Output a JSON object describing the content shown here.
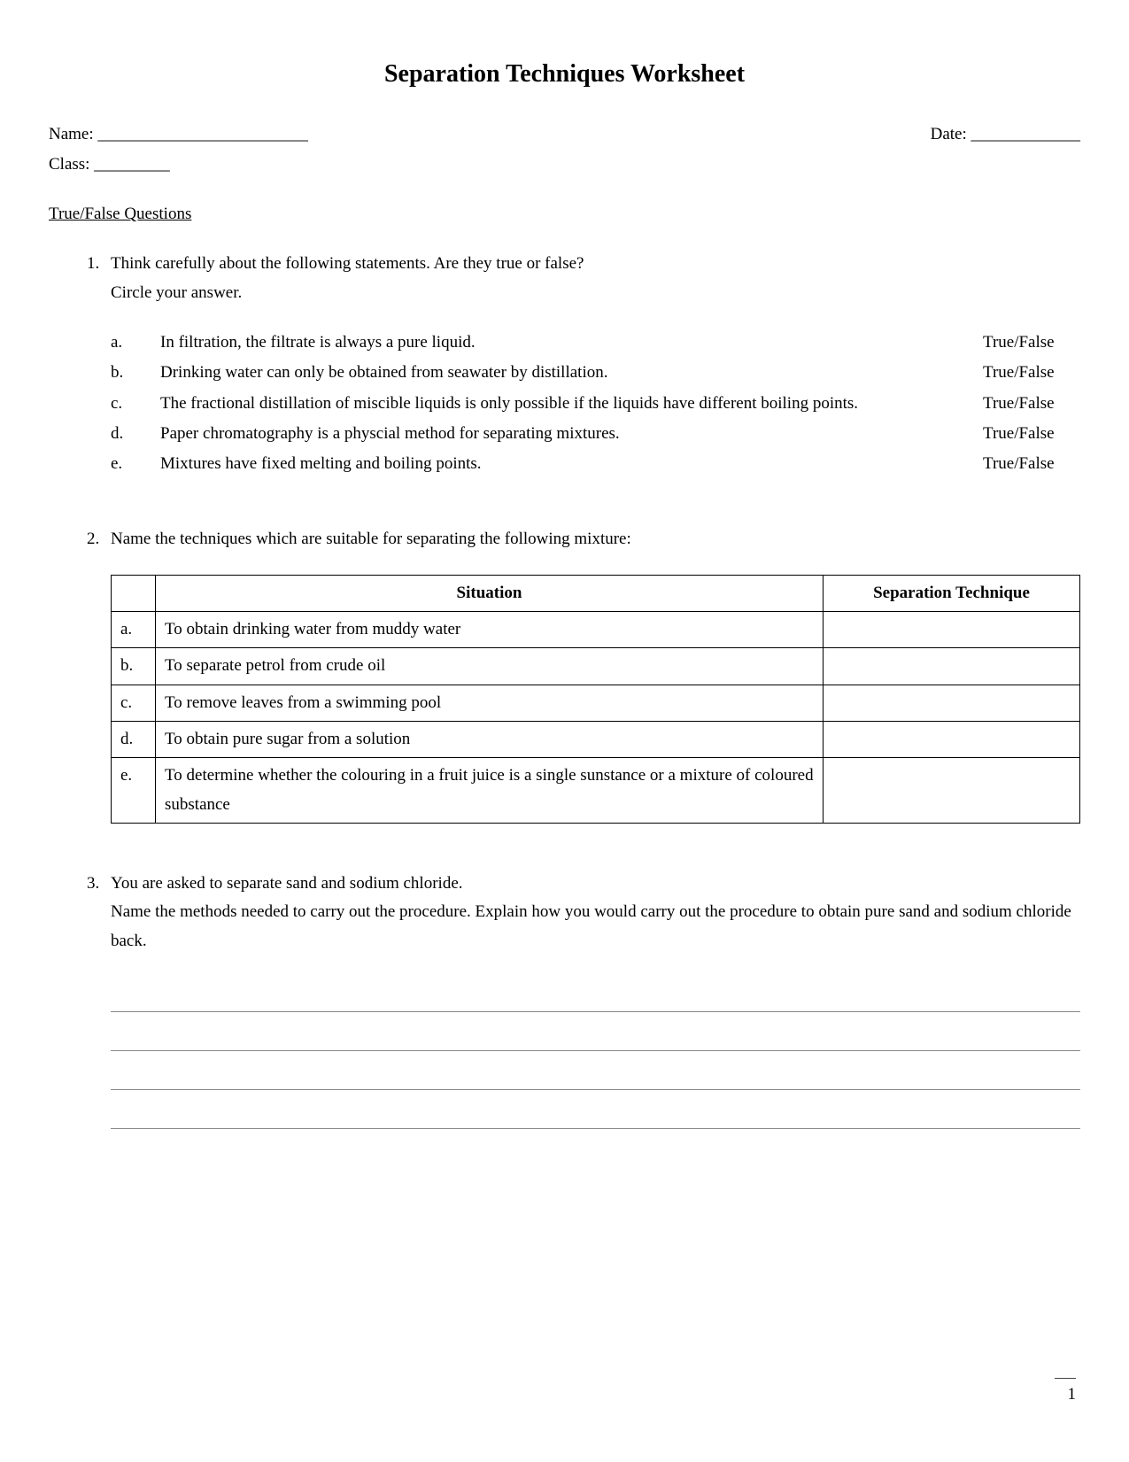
{
  "title": "Separation Techniques Worksheet",
  "fields": {
    "name": "Name: _________________________",
    "date": "Date: _____________",
    "class": "Class: _________"
  },
  "section1_heading": "True/False Questions",
  "q1": {
    "prompt_line1": "Think carefully about the following statements. Are they true or false?",
    "prompt_line2": "Circle your answer.",
    "tf_label": "True/False",
    "items": [
      {
        "letter": "a.",
        "text": "In filtration, the filtrate is always a pure liquid."
      },
      {
        "letter": "b.",
        "text": "Drinking water can only be obtained from seawater by distillation."
      },
      {
        "letter": "c.",
        "text": "The fractional distillation of miscible liquids is only possible if the liquids have different boiling points."
      },
      {
        "letter": "d.",
        "text": "Paper chromatography is a physcial method for separating mixtures."
      },
      {
        "letter": "e.",
        "text": "Mixtures have fixed melting and boiling points."
      }
    ]
  },
  "q2": {
    "prompt": "Name the techniques which are suitable for separating the following mixture:",
    "headers": {
      "situation": "Situation",
      "technique": "Separation Technique"
    },
    "rows": [
      {
        "letter": "a.",
        "situation": "To obtain drinking water from muddy water"
      },
      {
        "letter": "b.",
        "situation": "To separate petrol from crude oil"
      },
      {
        "letter": "c.",
        "situation": "To remove leaves from a swimming pool"
      },
      {
        "letter": "d.",
        "situation": "To obtain pure sugar from a solution"
      },
      {
        "letter": "e.",
        "situation": "To determine whether the colouring in a fruit juice is a single sunstance or a mixture of coloured substance"
      }
    ]
  },
  "q3": {
    "line1": "You are asked to separate sand and sodium chloride.",
    "line2": "Name the methods needed to carry out the procedure. Explain how you would carry out the procedure to obtain pure sand and sodium chloride back.",
    "answer_lines": 4
  },
  "page_number": "1"
}
